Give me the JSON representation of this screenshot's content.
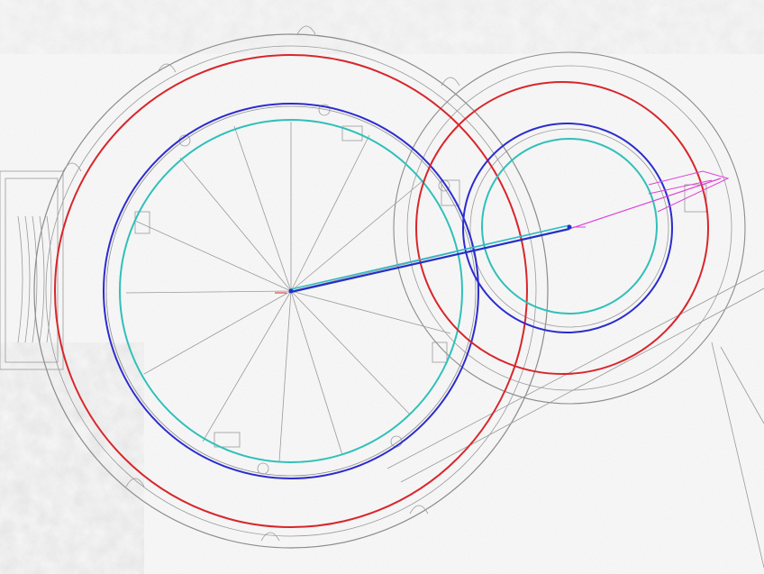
{
  "drawing": {
    "colors": {
      "background": "#fbfbfb",
      "paper_grey": "#e9e9e9",
      "linework": "#8a8a8a",
      "outer_ring": "#d8262b",
      "middle_ring": "#2c2ccf",
      "inner_ring": "#2fc0b8",
      "measure_line": "#2230c8",
      "measure_line_2": "#2fb9c4",
      "extension": "#e040d8"
    },
    "circles": [
      {
        "name": "large-outer-circle",
        "ring": "outer"
      },
      {
        "name": "large-middle-circle",
        "ring": "middle"
      },
      {
        "name": "large-inner-circle",
        "ring": "inner"
      },
      {
        "name": "small-outer-circle",
        "ring": "outer"
      },
      {
        "name": "small-middle-circle",
        "ring": "middle"
      },
      {
        "name": "small-inner-circle",
        "ring": "inner"
      }
    ]
  }
}
